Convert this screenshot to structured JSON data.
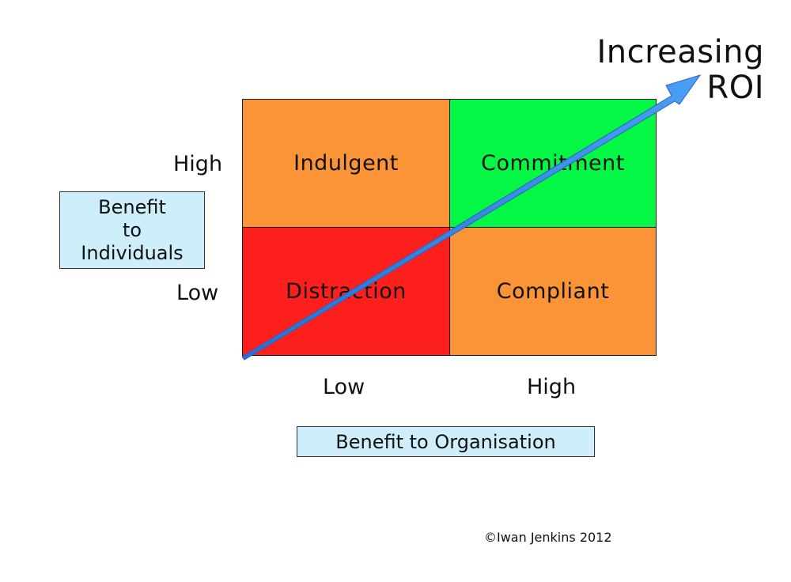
{
  "colors": {
    "orange": "#fa9437",
    "green": "#05f745",
    "red": "#fd1f1c",
    "axis_box_fill": "#cdeefa",
    "arrow_blue": "#3b8fe8"
  },
  "quadrants": {
    "top_left": "Indulgent",
    "top_right": "Commitment",
    "bottom_left": "Distraction",
    "bottom_right": "Compliant"
  },
  "y_axis": {
    "title": "Benefit\nto\nIndividuals",
    "high": "High",
    "low": "Low"
  },
  "x_axis": {
    "title": "Benefit to Organisation",
    "low": "Low",
    "high": "High"
  },
  "arrow_label": "Increasing\nROI",
  "copyright": "©Iwan Jenkins 2012"
}
